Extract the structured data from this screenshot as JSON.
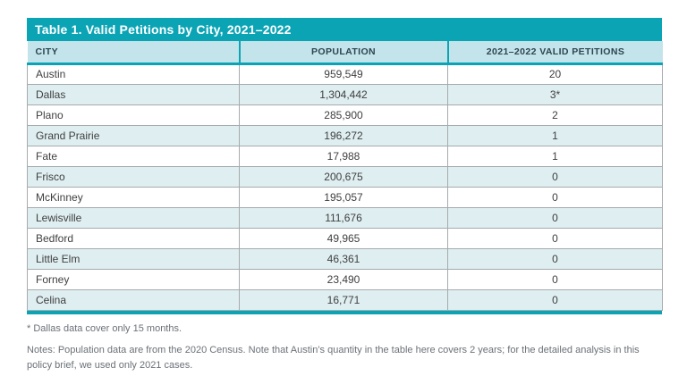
{
  "table": {
    "title": "Table 1. Valid Petitions by City, 2021–2022",
    "columns": [
      "CITY",
      "POPULATION",
      "2021–2022 VALID PETITIONS"
    ],
    "rows": [
      [
        "Austin",
        "959,549",
        "20"
      ],
      [
        "Dallas",
        "1,304,442",
        "3*"
      ],
      [
        "Plano",
        "285,900",
        "2"
      ],
      [
        "Grand Prairie",
        "196,272",
        "1"
      ],
      [
        "Fate",
        "17,988",
        "1"
      ],
      [
        "Frisco",
        "200,675",
        "0"
      ],
      [
        "McKinney",
        "195,057",
        "0"
      ],
      [
        "Lewisville",
        "111,676",
        "0"
      ],
      [
        "Bedford",
        "49,965",
        "0"
      ],
      [
        "Little Elm",
        "46,361",
        "0"
      ],
      [
        "Forney",
        "23,490",
        "0"
      ],
      [
        "Celina",
        "16,771",
        "0"
      ]
    ]
  },
  "footnotes": {
    "asterisk_note": "* Dallas data cover only 15 months.",
    "general_note": "Notes: Population data are from the 2020 Census. Note that Austin’s quantity in the table here covers 2 years; for the detailed analysis in this policy brief, we used only 2021 cases."
  },
  "colors": {
    "accent_teal": "#0ba4b5",
    "header_background": "#c3e4ea",
    "alternate_row_background": "#dfeef1",
    "header_text": "#2d4550",
    "body_text": "#3f3f3f",
    "note_text": "#6b7177"
  }
}
